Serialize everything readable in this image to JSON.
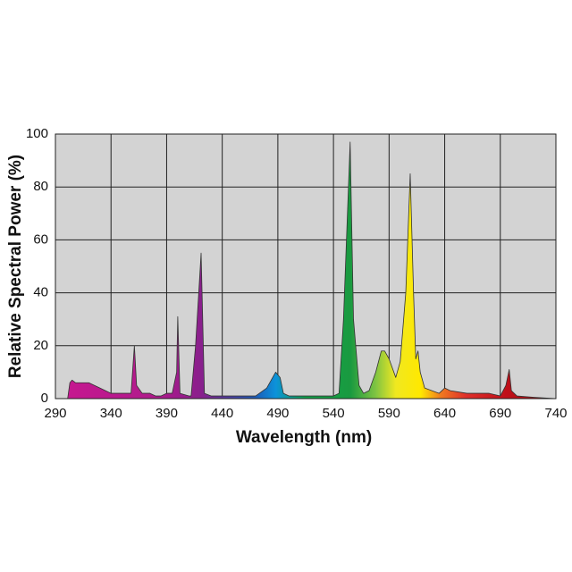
{
  "chart_data": {
    "type": "area",
    "xlabel": "Wavelength (nm)",
    "ylabel": "Relative Spectral Power (%)",
    "x": [
      301,
      303,
      305,
      308,
      320,
      330,
      340,
      358,
      361,
      363,
      368,
      375,
      380,
      385,
      390,
      395,
      399,
      400,
      402,
      410,
      412,
      416,
      421,
      424,
      430,
      440,
      470,
      480,
      488,
      492,
      495,
      500,
      530,
      540,
      545,
      549,
      555,
      558,
      563,
      567,
      572,
      578,
      583,
      586,
      590,
      596,
      600,
      605,
      609,
      612,
      614,
      616,
      618,
      622,
      635,
      640,
      645,
      660,
      670,
      680,
      690,
      695,
      698,
      700,
      705,
      720,
      740
    ],
    "values": [
      0,
      6,
      7,
      6,
      6,
      4,
      2,
      2,
      20,
      5,
      2,
      2,
      1,
      1,
      2,
      2,
      10,
      31,
      2,
      1,
      1,
      20,
      55,
      2,
      1,
      1,
      1,
      4,
      10,
      8,
      2,
      1,
      1,
      1,
      2,
      30,
      97,
      30,
      5,
      2,
      3,
      10,
      18,
      18,
      15,
      8,
      14,
      40,
      85,
      40,
      15,
      18,
      10,
      4,
      2,
      4,
      3,
      2,
      2,
      2,
      1,
      5,
      11,
      3,
      1,
      0.5,
      0
    ],
    "xlim": [
      290,
      740
    ],
    "ylim": [
      0,
      100
    ],
    "xticks": [
      290,
      340,
      390,
      440,
      490,
      540,
      590,
      640,
      690,
      740
    ],
    "yticks": [
      0,
      20,
      40,
      60,
      80,
      100
    ],
    "grid": true
  }
}
